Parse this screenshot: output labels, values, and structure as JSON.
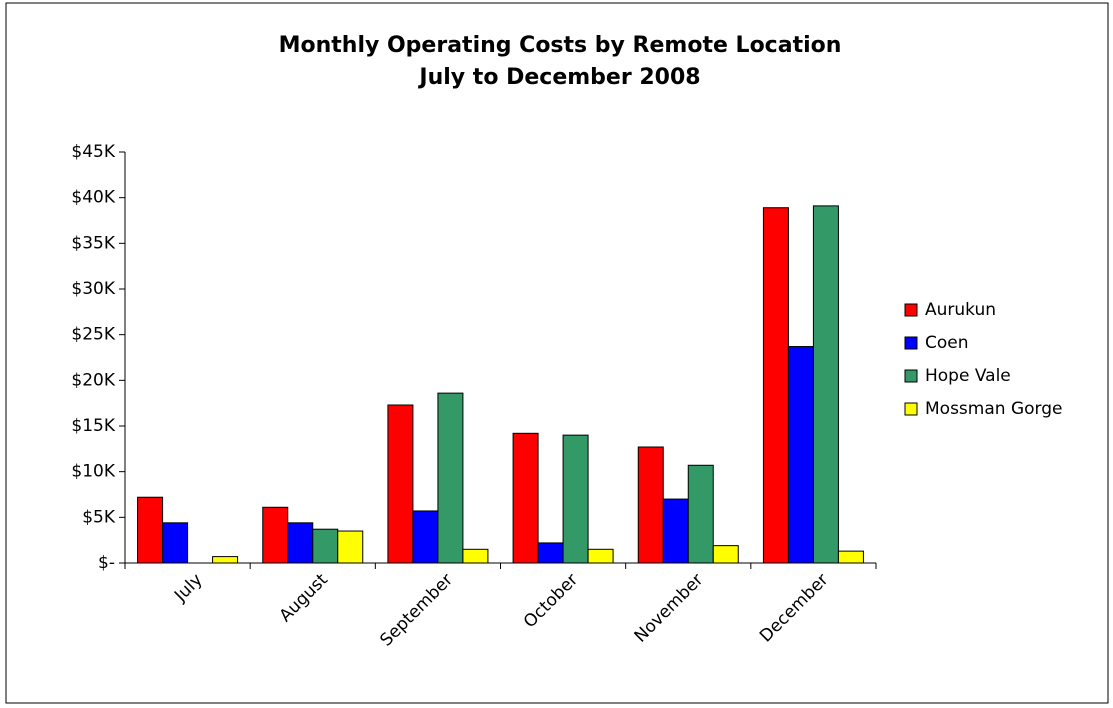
{
  "chart_data": {
    "type": "bar",
    "title": "Monthly Operating Costs by Remote Location",
    "subtitle": "July to December 2008",
    "categories": [
      "July",
      "August",
      "September",
      "October",
      "November",
      "December"
    ],
    "series": [
      {
        "name": "Aurukun",
        "color": "#ff0000",
        "values": [
          7200,
          6100,
          17300,
          14200,
          12700,
          38900
        ]
      },
      {
        "name": "Coen",
        "color": "#0000ff",
        "values": [
          4400,
          4400,
          5700,
          2200,
          7000,
          23700
        ]
      },
      {
        "name": "Hope Vale",
        "color": "#339966",
        "values": [
          0,
          3700,
          18600,
          14000,
          10700,
          39100
        ]
      },
      {
        "name": "Mossman Gorge",
        "color": "#ffff00",
        "values": [
          700,
          3500,
          1500,
          1500,
          1900,
          1300
        ]
      }
    ],
    "ylim": [
      0,
      45000
    ],
    "yticks": [
      {
        "value": 0,
        "label": "$-"
      },
      {
        "value": 5000,
        "label": "$5K"
      },
      {
        "value": 10000,
        "label": "$10K"
      },
      {
        "value": 15000,
        "label": "$15K"
      },
      {
        "value": 20000,
        "label": "$20K"
      },
      {
        "value": 25000,
        "label": "$25K"
      },
      {
        "value": 30000,
        "label": "$30K"
      },
      {
        "value": 35000,
        "label": "$35K"
      },
      {
        "value": 40000,
        "label": "$40K"
      },
      {
        "value": 45000,
        "label": "$45K"
      }
    ],
    "grid": false,
    "legend": "right"
  }
}
